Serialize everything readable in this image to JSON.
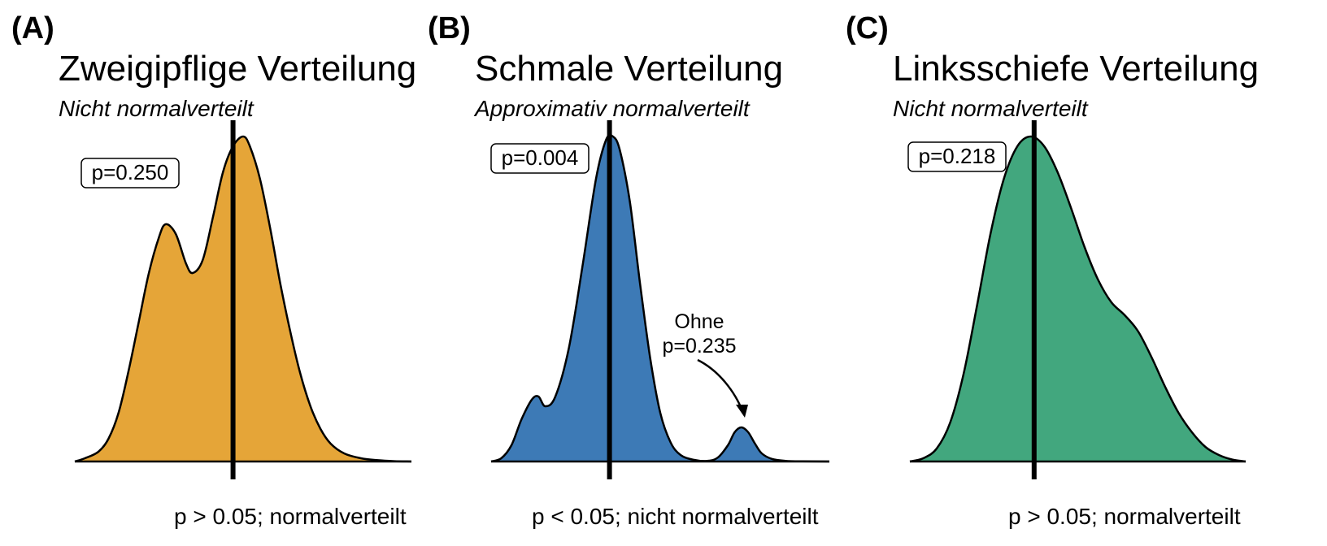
{
  "chart_data": [
    {
      "type": "area",
      "panel_label": "(A)",
      "title": "Zweigipflige Verteilung",
      "subtitle": "Nicht normalverteilt",
      "p_label": "p=0.250",
      "xlabel": "p > 0.05; normalverteilt",
      "fill_color": "#E5A538",
      "x_range": [
        0,
        100
      ],
      "y_range": [
        0,
        1
      ],
      "mean_x": 47,
      "curve": [
        [
          0,
          0
        ],
        [
          3,
          0.01
        ],
        [
          7,
          0.03
        ],
        [
          10,
          0.07
        ],
        [
          13,
          0.15
        ],
        [
          16,
          0.28
        ],
        [
          19,
          0.43
        ],
        [
          22,
          0.58
        ],
        [
          25,
          0.69
        ],
        [
          27,
          0.73
        ],
        [
          30,
          0.7
        ],
        [
          33,
          0.61
        ],
        [
          35,
          0.58
        ],
        [
          38,
          0.62
        ],
        [
          41,
          0.75
        ],
        [
          44,
          0.89
        ],
        [
          47,
          0.97
        ],
        [
          50,
          1.0
        ],
        [
          52,
          0.97
        ],
        [
          55,
          0.87
        ],
        [
          58,
          0.72
        ],
        [
          61,
          0.55
        ],
        [
          64,
          0.4
        ],
        [
          67,
          0.27
        ],
        [
          70,
          0.17
        ],
        [
          73,
          0.1
        ],
        [
          76,
          0.055
        ],
        [
          80,
          0.025
        ],
        [
          85,
          0.01
        ],
        [
          90,
          0.004
        ],
        [
          95,
          0.001
        ],
        [
          100,
          0
        ]
      ]
    },
    {
      "type": "area",
      "panel_label": "(B)",
      "title": "Schmale Verteilung",
      "subtitle": "Approximativ normalverteilt",
      "p_label": "p=0.004",
      "xlabel": "p < 0.05; nicht normalverteilt",
      "fill_color": "#3D7AB6",
      "x_range": [
        0,
        100
      ],
      "y_range": [
        0,
        1
      ],
      "mean_x": 35,
      "annotation": {
        "lines": [
          "Ohne",
          "p=0.235"
        ],
        "target_x": 74
      },
      "curve": [
        [
          0,
          0
        ],
        [
          3,
          0.01
        ],
        [
          6,
          0.05
        ],
        [
          9,
          0.13
        ],
        [
          12,
          0.19
        ],
        [
          14,
          0.2
        ],
        [
          16,
          0.17
        ],
        [
          19,
          0.2
        ],
        [
          23,
          0.35
        ],
        [
          27,
          0.6
        ],
        [
          31,
          0.87
        ],
        [
          34,
          0.99
        ],
        [
          36,
          1.0
        ],
        [
          38,
          0.96
        ],
        [
          41,
          0.8
        ],
        [
          44,
          0.55
        ],
        [
          47,
          0.32
        ],
        [
          50,
          0.15
        ],
        [
          53,
          0.06
        ],
        [
          56,
          0.02
        ],
        [
          60,
          0.005
        ],
        [
          64,
          0.002
        ],
        [
          67,
          0.012
        ],
        [
          70,
          0.05
        ],
        [
          72,
          0.09
        ],
        [
          74,
          0.105
        ],
        [
          76,
          0.09
        ],
        [
          78,
          0.055
        ],
        [
          80,
          0.025
        ],
        [
          83,
          0.008
        ],
        [
          87,
          0.002
        ],
        [
          92,
          0.0005
        ],
        [
          100,
          0
        ]
      ]
    },
    {
      "type": "area",
      "panel_label": "(C)",
      "title": "Linksschiefe Verteilung",
      "subtitle": "Nicht normalverteilt",
      "p_label": "p=0.218",
      "xlabel": "p > 0.05; normalverteilt",
      "fill_color": "#42A77E",
      "x_range": [
        0,
        100
      ],
      "y_range": [
        0,
        1
      ],
      "mean_x": 37,
      "curve": [
        [
          0,
          0
        ],
        [
          4,
          0.01
        ],
        [
          8,
          0.04
        ],
        [
          12,
          0.12
        ],
        [
          16,
          0.27
        ],
        [
          20,
          0.48
        ],
        [
          24,
          0.7
        ],
        [
          28,
          0.87
        ],
        [
          32,
          0.97
        ],
        [
          36,
          1.0
        ],
        [
          40,
          0.97
        ],
        [
          44,
          0.89
        ],
        [
          48,
          0.78
        ],
        [
          52,
          0.66
        ],
        [
          56,
          0.56
        ],
        [
          60,
          0.49
        ],
        [
          64,
          0.45
        ],
        [
          68,
          0.4
        ],
        [
          72,
          0.32
        ],
        [
          76,
          0.23
        ],
        [
          80,
          0.15
        ],
        [
          84,
          0.09
        ],
        [
          88,
          0.045
        ],
        [
          92,
          0.02
        ],
        [
          96,
          0.006
        ],
        [
          100,
          0
        ]
      ]
    }
  ]
}
